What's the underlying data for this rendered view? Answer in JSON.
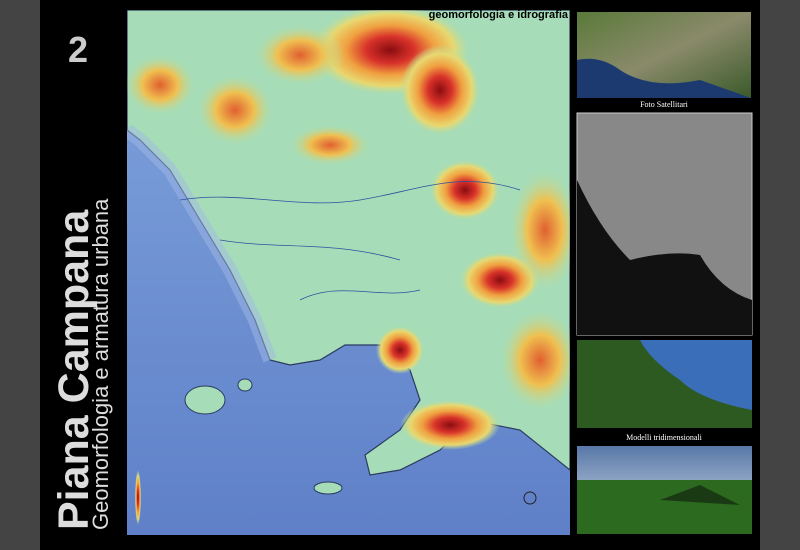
{
  "panel": {
    "number": "2",
    "title": "Piana Campana",
    "subtitle": "Geomorfologia e armatura urbana"
  },
  "map": {
    "title": "geomorfologia e idrografia"
  },
  "gallery": {
    "captions": [
      "Foto Satellitari",
      "Modelli tridimensionali"
    ]
  }
}
